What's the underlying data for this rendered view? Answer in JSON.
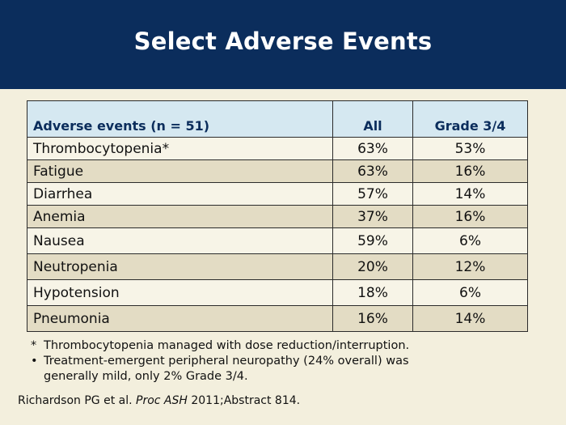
{
  "slide": {
    "title": "Select Adverse Events",
    "colors": {
      "header_bg": "#0b2d5c",
      "table_header_bg": "#d5e8f1",
      "row_light": "#f7f4e7",
      "row_dark": "#e3dcc4",
      "page_bg": "#f3efdd"
    }
  },
  "table": {
    "headers": {
      "event": "Adverse events (n = 51)",
      "all": "All",
      "grade": "Grade 3/4"
    },
    "rows": [
      {
        "event": "Thrombocytopenia*",
        "all": "63%",
        "grade": "53%"
      },
      {
        "event": "Fatigue",
        "all": "63%",
        "grade": "16%"
      },
      {
        "event": "Diarrhea",
        "all": "57%",
        "grade": "14%"
      },
      {
        "event": "Anemia",
        "all": "37%",
        "grade": "16%"
      },
      {
        "event": "Nausea",
        "all": "59%",
        "grade": "6%"
      },
      {
        "event": "Neutropenia",
        "all": "20%",
        "grade": "12%"
      },
      {
        "event": "Hypotension",
        "all": "18%",
        "grade": "6%"
      },
      {
        "event": "Pneumonia",
        "all": "16%",
        "grade": "14%"
      }
    ]
  },
  "notes": {
    "asterisk_mark": "*",
    "asterisk_text": "Thrombocytopenia managed with dose reduction/interruption.",
    "bullet_mark": "•",
    "bullet_text_1": "Treatment-emergent peripheral neuropathy (24% overall) was",
    "bullet_text_2": "generally mild, only 2% Grade 3/4."
  },
  "citation": {
    "authors": "Richardson PG et al. ",
    "journal": "Proc ASH",
    "details": " 2011;Abstract 814."
  }
}
